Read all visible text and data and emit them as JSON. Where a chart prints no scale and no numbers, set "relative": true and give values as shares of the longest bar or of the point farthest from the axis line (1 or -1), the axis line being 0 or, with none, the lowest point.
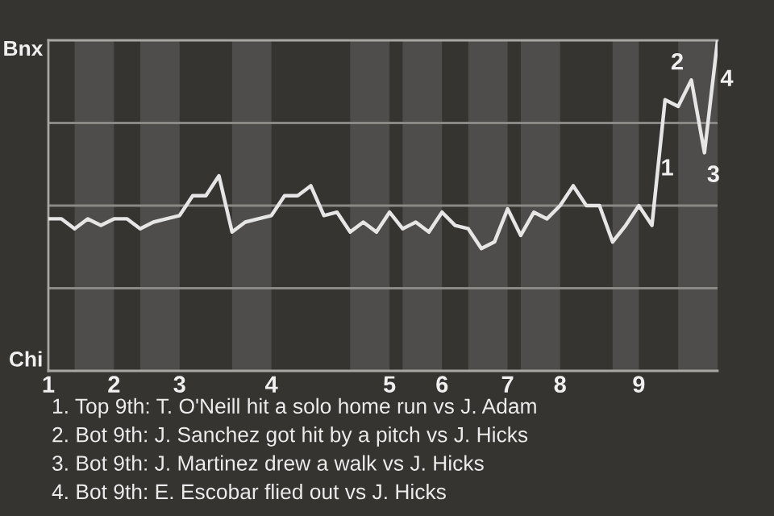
{
  "chart_data": {
    "type": "line",
    "relative": true,
    "grid": "y",
    "categories": [
      "1",
      null,
      null,
      null,
      null,
      "2",
      null,
      null,
      null,
      null,
      "3",
      null,
      null,
      null,
      null,
      null,
      null,
      "4",
      null,
      null,
      null,
      null,
      null,
      null,
      null,
      null,
      "5",
      null,
      null,
      null,
      "6",
      null,
      null,
      null,
      null,
      "7",
      null,
      null,
      null,
      "8",
      null,
      null,
      null,
      null,
      null,
      "9",
      null,
      null,
      null,
      null,
      null,
      null
    ],
    "series": [
      {
        "color": "#e6e6e6",
        "values": [
          0.46,
          0.46,
          0.43,
          0.46,
          0.44,
          0.46,
          0.46,
          0.43,
          0.45,
          0.46,
          0.47,
          0.53,
          0.53,
          0.59,
          0.42,
          0.45,
          0.46,
          0.47,
          0.53,
          0.53,
          0.56,
          0.47,
          0.48,
          0.42,
          0.45,
          0.42,
          0.48,
          0.43,
          0.45,
          0.42,
          0.48,
          0.44,
          0.43,
          0.37,
          0.39,
          0.49,
          0.41,
          0.48,
          0.46,
          0.5,
          0.56,
          0.5,
          0.5,
          0.39,
          0.44,
          0.5,
          0.44,
          0.82,
          0.8,
          0.88,
          0.66,
          1.0
        ]
      }
    ],
    "annotations": [
      "Bnx",
      "Chi",
      "1",
      "2",
      "3",
      "4",
      "1. Top 9th: T. O'Neill hit a solo home run vs J. Adam",
      "2. Bot 9th: J. Sanchez got hit by a pitch vs J. Hicks",
      "3. Bot 9th: J. Martinez drew a walk vs J. Hicks",
      "4. Bot 9th: E. Escobar flied out vs J. Hicks"
    ],
    "line_style": "solid"
  }
}
